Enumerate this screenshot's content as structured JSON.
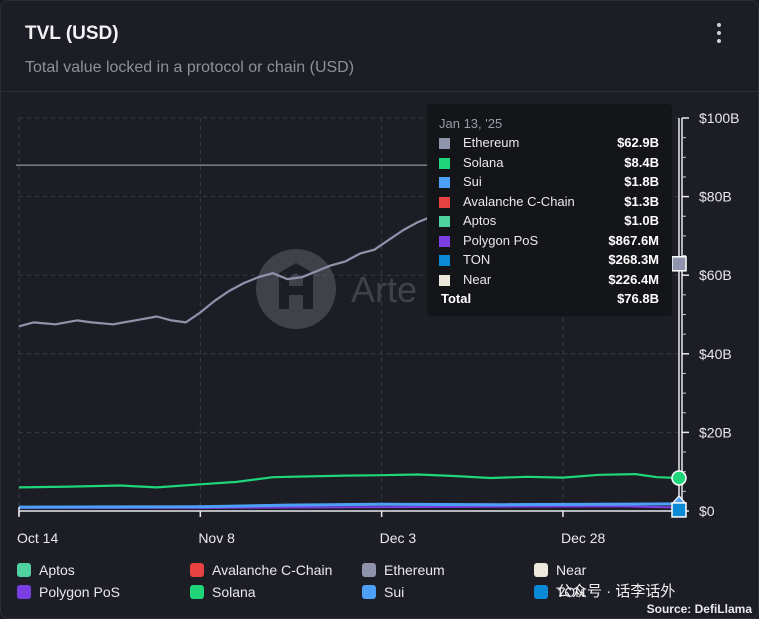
{
  "header": {
    "title": "TVL (USD)",
    "subtitle": "Total value locked in a protocol or chain (USD)"
  },
  "watermark": {
    "text": "Arte"
  },
  "tooltip": {
    "date": "Jan 13, '25",
    "rows": [
      {
        "name": "Ethereum",
        "value": "$62.9B",
        "color": "#8f93ab"
      },
      {
        "name": "Solana",
        "value": "$8.4B",
        "color": "#1fd67a"
      },
      {
        "name": "Sui",
        "value": "$1.8B",
        "color": "#4da0f7"
      },
      {
        "name": "Avalanche C-Chain",
        "value": "$1.3B",
        "color": "#e84142"
      },
      {
        "name": "Aptos",
        "value": "$1.0B",
        "color": "#4fd1a0"
      },
      {
        "name": "Polygon PoS",
        "value": "$867.6M",
        "color": "#7b3fe4"
      },
      {
        "name": "TON",
        "value": "$268.3M",
        "color": "#0a89d6"
      },
      {
        "name": "Near",
        "value": "$226.4M",
        "color": "#ece9dc"
      }
    ],
    "total": {
      "name": "Total",
      "value": "$76.8B"
    }
  },
  "legend": [
    {
      "name": "Aptos",
      "color": "#4fd1a0"
    },
    {
      "name": "Avalanche C-Chain",
      "color": "#e84142"
    },
    {
      "name": "Ethereum",
      "color": "#8f93ab"
    },
    {
      "name": "Near",
      "color": "#ece9dc"
    },
    {
      "name": "Polygon PoS",
      "color": "#7b3fe4"
    },
    {
      "name": "Solana",
      "color": "#1fd67a"
    },
    {
      "name": "Sui",
      "color": "#4da0f7"
    },
    {
      "name": "TON",
      "color": "#0a89d6"
    }
  ],
  "source": "Source: DefiLlama",
  "wechat_label": "公众号 · 话李话外",
  "chart_data": {
    "type": "line",
    "title": "TVL (USD)",
    "subtitle": "Total value locked in a protocol or chain (USD)",
    "y_unit": "USD billions",
    "ylim": [
      0,
      100
    ],
    "y_ticks": [
      {
        "value": 0,
        "label": "$0"
      },
      {
        "value": 20,
        "label": "$20B"
      },
      {
        "value": 40,
        "label": "$40B"
      },
      {
        "value": 60,
        "label": "$60B"
      },
      {
        "value": 80,
        "label": "$80B"
      },
      {
        "value": 100,
        "label": "$100B"
      }
    ],
    "x_ticks": [
      {
        "date": "2024-10-14",
        "label": "Oct 14"
      },
      {
        "date": "2024-11-08",
        "label": "Nov 8"
      },
      {
        "date": "2024-12-03",
        "label": "Dec 3"
      },
      {
        "date": "2024-12-28",
        "label": "Dec 28"
      }
    ],
    "xlim": [
      "2024-10-14",
      "2025-01-13"
    ],
    "grid": true,
    "reference_line": 88,
    "hover_date": "2025-01-13",
    "series": [
      {
        "name": "Ethereum",
        "color": "#8f93ab",
        "points": [
          [
            "2024-10-14",
            47.0
          ],
          [
            "2024-10-16",
            48.0
          ],
          [
            "2024-10-19",
            47.5
          ],
          [
            "2024-10-22",
            48.5
          ],
          [
            "2024-10-24",
            48.0
          ],
          [
            "2024-10-27",
            47.5
          ],
          [
            "2024-10-30",
            48.5
          ],
          [
            "2024-11-02",
            49.5
          ],
          [
            "2024-11-04",
            48.5
          ],
          [
            "2024-11-06",
            48.0
          ],
          [
            "2024-11-08",
            50.5
          ],
          [
            "2024-11-10",
            53.5
          ],
          [
            "2024-11-12",
            56.0
          ],
          [
            "2024-11-14",
            58.0
          ],
          [
            "2024-11-16",
            59.5
          ],
          [
            "2024-11-18",
            60.5
          ],
          [
            "2024-11-20",
            59.0
          ],
          [
            "2024-11-22",
            59.5
          ],
          [
            "2024-11-24",
            61.0
          ],
          [
            "2024-11-26",
            62.5
          ],
          [
            "2024-11-28",
            63.5
          ],
          [
            "2024-11-30",
            65.5
          ],
          [
            "2024-12-02",
            66.5
          ],
          [
            "2024-12-04",
            69.0
          ],
          [
            "2024-12-06",
            71.5
          ],
          [
            "2024-12-08",
            73.5
          ],
          [
            "2024-12-10",
            75.0
          ],
          [
            "2024-12-12",
            77.5
          ],
          [
            "2024-12-14",
            76.5
          ],
          [
            "2024-12-16",
            75.0
          ]
        ]
      },
      {
        "name": "Solana",
        "color": "#1fd67a",
        "points": [
          [
            "2024-10-14",
            6.0
          ],
          [
            "2024-10-21",
            6.2
          ],
          [
            "2024-10-28",
            6.5
          ],
          [
            "2024-11-02",
            6.0
          ],
          [
            "2024-11-08",
            6.8
          ],
          [
            "2024-11-13",
            7.4
          ],
          [
            "2024-11-18",
            8.6
          ],
          [
            "2024-11-23",
            8.8
          ],
          [
            "2024-11-28",
            9.0
          ],
          [
            "2024-12-03",
            9.1
          ],
          [
            "2024-12-08",
            9.3
          ],
          [
            "2024-12-13",
            8.9
          ],
          [
            "2024-12-18",
            8.4
          ],
          [
            "2024-12-23",
            8.7
          ],
          [
            "2024-12-28",
            8.5
          ],
          [
            "2025-01-02",
            9.2
          ],
          [
            "2025-01-07",
            9.4
          ],
          [
            "2025-01-10",
            8.6
          ],
          [
            "2025-01-13",
            8.4
          ]
        ]
      },
      {
        "name": "Sui",
        "color": "#4da0f7",
        "points": [
          [
            "2024-10-14",
            1.0
          ],
          [
            "2024-11-08",
            1.1
          ],
          [
            "2024-11-20",
            1.5
          ],
          [
            "2024-12-03",
            1.7
          ],
          [
            "2024-12-20",
            1.6
          ],
          [
            "2025-01-13",
            1.8
          ]
        ]
      },
      {
        "name": "Polygon PoS",
        "color": "#7b3fe4",
        "points": [
          [
            "2024-10-14",
            0.8
          ],
          [
            "2024-11-08",
            0.8
          ],
          [
            "2024-12-03",
            1.0
          ],
          [
            "2025-01-05",
            1.2
          ],
          [
            "2025-01-13",
            0.9
          ]
        ]
      }
    ]
  }
}
